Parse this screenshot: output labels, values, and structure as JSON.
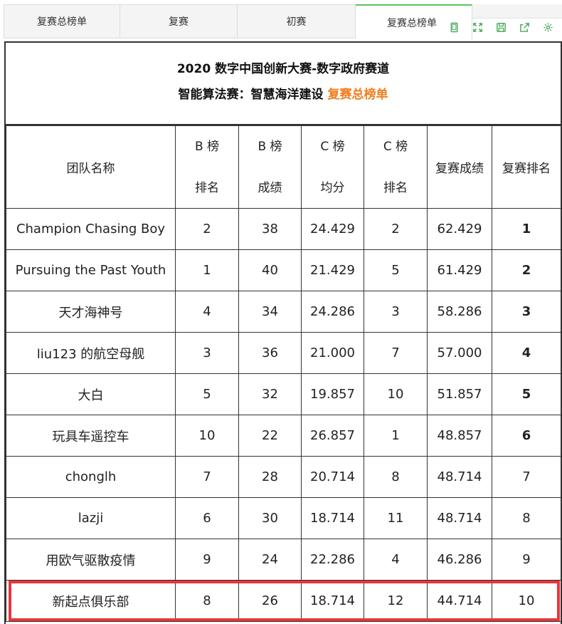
{
  "tabs": [
    {
      "label": "复赛总榜单"
    },
    {
      "label": "复赛"
    },
    {
      "label": "初赛"
    },
    {
      "label": "复赛总榜单"
    }
  ],
  "toolbar": [
    {
      "icon": "tablet-icon"
    },
    {
      "icon": "fullscreen-icon"
    },
    {
      "icon": "save-icon"
    },
    {
      "icon": "export-icon"
    },
    {
      "icon": "settings-icon"
    }
  ],
  "header": {
    "title": "2020 数字中国创新大赛-数字政府赛道",
    "subtitle": "智能算法赛：智慧海洋建设",
    "subtitle_highlight": "复赛总榜单"
  },
  "columns": {
    "team": "团队名称",
    "b_rank_1": "B 榜",
    "b_rank_2": "排名",
    "b_score_1": "B 榜",
    "b_score_2": "成绩",
    "c_avg_1": "C 榜",
    "c_avg_2": "均分",
    "c_rank_1": "C 榜",
    "c_rank_2": "排名",
    "final_score": "复赛成绩",
    "final_rank": "复赛排名"
  },
  "rows": [
    {
      "team": "Champion Chasing Boy",
      "b_rank": "2",
      "b_score": "38",
      "c_avg": "24.429",
      "c_rank": "2",
      "final_score": "62.429",
      "final_rank": "1"
    },
    {
      "team": "Pursuing the Past Youth",
      "b_rank": "1",
      "b_score": "40",
      "c_avg": "21.429",
      "c_rank": "5",
      "final_score": "61.429",
      "final_rank": "2"
    },
    {
      "team": "天才海神号",
      "b_rank": "4",
      "b_score": "34",
      "c_avg": "24.286",
      "c_rank": "3",
      "final_score": "58.286",
      "final_rank": "3"
    },
    {
      "team": "liu123 的航空母舰",
      "b_rank": "3",
      "b_score": "36",
      "c_avg": "21.000",
      "c_rank": "7",
      "final_score": "57.000",
      "final_rank": "4"
    },
    {
      "team": "大白",
      "b_rank": "5",
      "b_score": "32",
      "c_avg": "19.857",
      "c_rank": "10",
      "final_score": "51.857",
      "final_rank": "5"
    },
    {
      "team": "玩具车遥控车",
      "b_rank": "10",
      "b_score": "22",
      "c_avg": "26.857",
      "c_rank": "1",
      "final_score": "48.857",
      "final_rank": "6"
    },
    {
      "team": "chonglh",
      "b_rank": "7",
      "b_score": "28",
      "c_avg": "20.714",
      "c_rank": "8",
      "final_score": "48.714",
      "final_rank": "7"
    },
    {
      "team": "lazji",
      "b_rank": "6",
      "b_score": "30",
      "c_avg": "18.714",
      "c_rank": "11",
      "final_score": "48.714",
      "final_rank": "8"
    },
    {
      "team": "用欧气驱散疫情",
      "b_rank": "9",
      "b_score": "24",
      "c_avg": "22.286",
      "c_rank": "4",
      "final_score": "46.286",
      "final_rank": "9"
    },
    {
      "team": "新起点俱乐部",
      "b_rank": "8",
      "b_score": "26",
      "c_avg": "18.714",
      "c_rank": "12",
      "final_score": "44.714",
      "final_rank": "10"
    }
  ],
  "accent_color": "#f07e1e",
  "highlight_color": "#e8353a",
  "tab_accent_color": "#5cc25c"
}
